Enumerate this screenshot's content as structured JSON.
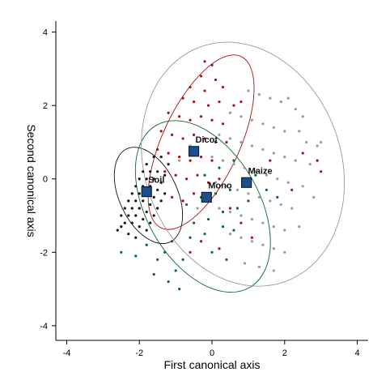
{
  "chart_data": {
    "type": "scatter",
    "title": "",
    "xlabel": "First canonical axis",
    "ylabel": "Second canonical axis",
    "xlim": [
      -4.3,
      4.3
    ],
    "ylim": [
      -4.4,
      4.3
    ],
    "x_ticks": [
      {
        "value": -4,
        "label": "-4"
      },
      {
        "value": -2,
        "label": "-2"
      },
      {
        "value": 0,
        "label": "0"
      },
      {
        "value": 2,
        "label": "2"
      },
      {
        "value": 4,
        "label": "4"
      }
    ],
    "y_ticks": [
      {
        "value": -4,
        "label": "-4"
      },
      {
        "value": -2,
        "label": "-2"
      },
      {
        "value": 0,
        "label": "0"
      },
      {
        "value": 2,
        "label": "2"
      },
      {
        "value": 4,
        "label": "4"
      }
    ],
    "grid": false,
    "legend": "none",
    "series": [
      {
        "name": "Soil",
        "color": "#111111",
        "centroid": [
          -1.8,
          -0.35
        ],
        "ellipse": {
          "cx": -1.75,
          "cy": -0.45,
          "rx": 0.8,
          "ry": 1.4,
          "angle_deg": 25
        },
        "points": [
          [
            -2.5,
            -1.0
          ],
          [
            -2.4,
            -0.8
          ],
          [
            -2.3,
            -0.6
          ],
          [
            -2.2,
            -0.4
          ],
          [
            -2.1,
            -0.2
          ],
          [
            -2.0,
            0.0
          ],
          [
            -1.9,
            0.2
          ],
          [
            -1.8,
            0.4
          ],
          [
            -2.4,
            -1.2
          ],
          [
            -2.3,
            -1.0
          ],
          [
            -2.2,
            -0.8
          ],
          [
            -2.1,
            -0.6
          ],
          [
            -2.0,
            -0.4
          ],
          [
            -1.9,
            -0.2
          ],
          [
            -1.8,
            0.0
          ],
          [
            -1.7,
            0.2
          ],
          [
            -2.2,
            -1.2
          ],
          [
            -2.1,
            -1.0
          ],
          [
            -2.0,
            -0.8
          ],
          [
            -1.9,
            -0.6
          ],
          [
            -1.8,
            -0.4
          ],
          [
            -1.7,
            -0.2
          ],
          [
            -1.6,
            0.0
          ],
          [
            -1.5,
            0.2
          ],
          [
            -2.0,
            -1.3
          ],
          [
            -1.9,
            -1.1
          ],
          [
            -1.8,
            -0.9
          ],
          [
            -1.7,
            -0.7
          ],
          [
            -1.6,
            -0.5
          ],
          [
            -1.5,
            -0.3
          ],
          [
            -1.4,
            -0.1
          ],
          [
            -1.3,
            0.1
          ],
          [
            -1.8,
            -1.4
          ],
          [
            -1.7,
            -1.2
          ],
          [
            -1.6,
            -1.0
          ],
          [
            -1.5,
            -0.8
          ],
          [
            -1.4,
            -0.6
          ],
          [
            -1.3,
            -0.4
          ],
          [
            -2.6,
            -1.4
          ],
          [
            -2.5,
            -1.3
          ],
          [
            -1.6,
            0.6
          ],
          [
            -1.4,
            0.6
          ],
          [
            -1.2,
            0.4
          ],
          [
            -2.3,
            -1.5
          ],
          [
            -2.1,
            -1.6
          ]
        ]
      },
      {
        "name": "Dicot",
        "color": "#aa1111",
        "centroid": [
          -0.5,
          0.75
        ],
        "ellipse": {
          "cx": -0.3,
          "cy": 1.0,
          "rx": 2.6,
          "ry": 1.05,
          "angle_deg": 65
        },
        "points": [
          [
            -0.2,
            3.2
          ],
          [
            0.0,
            3.1
          ],
          [
            -0.3,
            2.8
          ],
          [
            0.1,
            2.7
          ],
          [
            -0.6,
            2.5
          ],
          [
            -0.2,
            2.4
          ],
          [
            0.3,
            2.5
          ],
          [
            -0.8,
            2.2
          ],
          [
            -0.5,
            2.1
          ],
          [
            -0.1,
            2.0
          ],
          [
            0.2,
            2.1
          ],
          [
            0.6,
            2.0
          ],
          [
            0.8,
            2.1
          ],
          [
            -1.2,
            1.8
          ],
          [
            -0.9,
            1.7
          ],
          [
            -0.6,
            1.6
          ],
          [
            -0.3,
            1.7
          ],
          [
            0.0,
            1.6
          ],
          [
            0.3,
            1.5
          ],
          [
            -1.4,
            1.3
          ],
          [
            -1.1,
            1.2
          ],
          [
            -0.8,
            1.1
          ],
          [
            -0.5,
            1.2
          ],
          [
            -0.2,
            1.1
          ],
          [
            0.1,
            1.0
          ],
          [
            0.4,
            1.0
          ],
          [
            -1.5,
            0.8
          ],
          [
            -1.2,
            0.7
          ],
          [
            -0.9,
            0.6
          ],
          [
            -0.6,
            0.5
          ],
          [
            -0.3,
            0.6
          ],
          [
            0.0,
            0.5
          ],
          [
            -1.3,
            0.2
          ],
          [
            -1.0,
            0.1
          ],
          [
            -0.7,
            0.0
          ],
          [
            -0.4,
            0.1
          ],
          [
            -0.1,
            -0.1
          ],
          [
            0.2,
            0.0
          ],
          [
            -1.1,
            -0.5
          ],
          [
            -0.8,
            -0.6
          ],
          [
            -0.5,
            -0.4
          ],
          [
            0.5,
            -0.8
          ],
          [
            0.8,
            -1.2
          ],
          [
            1.1,
            -1.6
          ],
          [
            -0.3,
            -1.7
          ],
          [
            0.2,
            -1.9
          ],
          [
            -0.6,
            -2.0
          ],
          [
            1.6,
            0.5
          ],
          [
            2.5,
            0.7
          ],
          [
            2.9,
            0.5
          ],
          [
            3.0,
            0.2
          ],
          [
            2.2,
            -0.3
          ]
        ]
      },
      {
        "name": "Mono",
        "color": "#116633",
        "centroid": [
          -0.15,
          -0.5
        ],
        "ellipse": {
          "cx": -0.25,
          "cy": -0.75,
          "rx": 1.55,
          "ry": 2.55,
          "angle_deg": 30
        },
        "points": [
          [
            -0.9,
            -3.0
          ],
          [
            -1.2,
            -2.8
          ],
          [
            -1.0,
            -2.5
          ],
          [
            -1.5,
            -2.2
          ],
          [
            -1.3,
            -2.0
          ],
          [
            -0.8,
            -2.2
          ],
          [
            -1.1,
            -1.7
          ],
          [
            -0.6,
            -1.6
          ],
          [
            -0.2,
            -1.5
          ],
          [
            0.3,
            -1.3
          ],
          [
            0.6,
            -1.4
          ],
          [
            -0.5,
            -1.2
          ],
          [
            -0.1,
            -1.1
          ],
          [
            0.3,
            -0.9
          ],
          [
            0.7,
            -0.8
          ],
          [
            1.0,
            -0.6
          ],
          [
            -0.7,
            -0.7
          ],
          [
            -0.3,
            -0.5
          ],
          [
            0.1,
            -0.4
          ],
          [
            0.5,
            -0.3
          ],
          [
            0.9,
            -0.2
          ],
          [
            -0.2,
            0.1
          ],
          [
            0.2,
            0.3
          ],
          [
            0.6,
            0.5
          ],
          [
            1.2,
            0.1
          ],
          [
            1.5,
            -0.3
          ],
          [
            1.8,
            -0.5
          ],
          [
            -2.5,
            -2.0
          ],
          [
            -2.1,
            -2.1
          ],
          [
            -1.8,
            -1.8
          ],
          [
            0.0,
            -2.0
          ],
          [
            0.4,
            -2.2
          ],
          [
            -1.6,
            -2.6
          ]
        ]
      },
      {
        "name": "Maize",
        "color": "#9a9a9a",
        "centroid": [
          0.95,
          -0.1
        ],
        "ellipse": {
          "cx": 0.85,
          "cy": 0.4,
          "rx": 2.7,
          "ry": 3.4,
          "angle_deg": 20
        },
        "points": [
          [
            1.0,
            2.4
          ],
          [
            1.3,
            2.3
          ],
          [
            1.6,
            2.2
          ],
          [
            1.9,
            2.1
          ],
          [
            2.1,
            2.2
          ],
          [
            2.3,
            1.9
          ],
          [
            2.5,
            1.7
          ],
          [
            2.4,
            1.3
          ],
          [
            0.5,
            1.8
          ],
          [
            0.8,
            1.7
          ],
          [
            1.1,
            1.6
          ],
          [
            1.4,
            1.5
          ],
          [
            1.7,
            1.4
          ],
          [
            2.0,
            1.3
          ],
          [
            2.6,
            1.0
          ],
          [
            2.9,
            0.9
          ],
          [
            0.2,
            1.2
          ],
          [
            0.5,
            1.1
          ],
          [
            0.8,
            1.0
          ],
          [
            1.1,
            0.9
          ],
          [
            1.4,
            0.8
          ],
          [
            1.7,
            0.7
          ],
          [
            2.0,
            0.6
          ],
          [
            2.3,
            0.5
          ],
          [
            2.7,
            0.4
          ],
          [
            0.0,
            0.6
          ],
          [
            0.3,
            0.5
          ],
          [
            0.6,
            0.4
          ],
          [
            0.9,
            0.3
          ],
          [
            1.2,
            0.2
          ],
          [
            1.5,
            0.1
          ],
          [
            1.8,
            0.0
          ],
          [
            2.1,
            -0.1
          ],
          [
            2.5,
            -0.2
          ],
          [
            0.1,
            -0.1
          ],
          [
            0.4,
            -0.2
          ],
          [
            0.7,
            -0.3
          ],
          [
            1.0,
            -0.4
          ],
          [
            1.3,
            -0.5
          ],
          [
            1.6,
            -0.6
          ],
          [
            1.9,
            -0.7
          ],
          [
            2.2,
            -0.8
          ],
          [
            0.2,
            -0.8
          ],
          [
            0.5,
            -0.9
          ],
          [
            0.8,
            -1.0
          ],
          [
            1.1,
            -1.1
          ],
          [
            1.4,
            -1.2
          ],
          [
            1.7,
            -1.3
          ],
          [
            2.0,
            -1.4
          ],
          [
            2.4,
            -1.3
          ],
          [
            0.5,
            -1.5
          ],
          [
            0.8,
            -1.6
          ],
          [
            1.1,
            -1.7
          ],
          [
            1.4,
            -1.8
          ],
          [
            1.7,
            -1.9
          ],
          [
            2.0,
            -2.0
          ],
          [
            0.9,
            -2.3
          ],
          [
            1.3,
            -2.4
          ],
          [
            1.7,
            -2.5
          ],
          [
            -0.6,
            0.9
          ],
          [
            -0.9,
            0.5
          ],
          [
            -0.4,
            -0.8
          ],
          [
            3.0,
            1.0
          ],
          [
            2.8,
            -0.5
          ]
        ]
      }
    ]
  }
}
